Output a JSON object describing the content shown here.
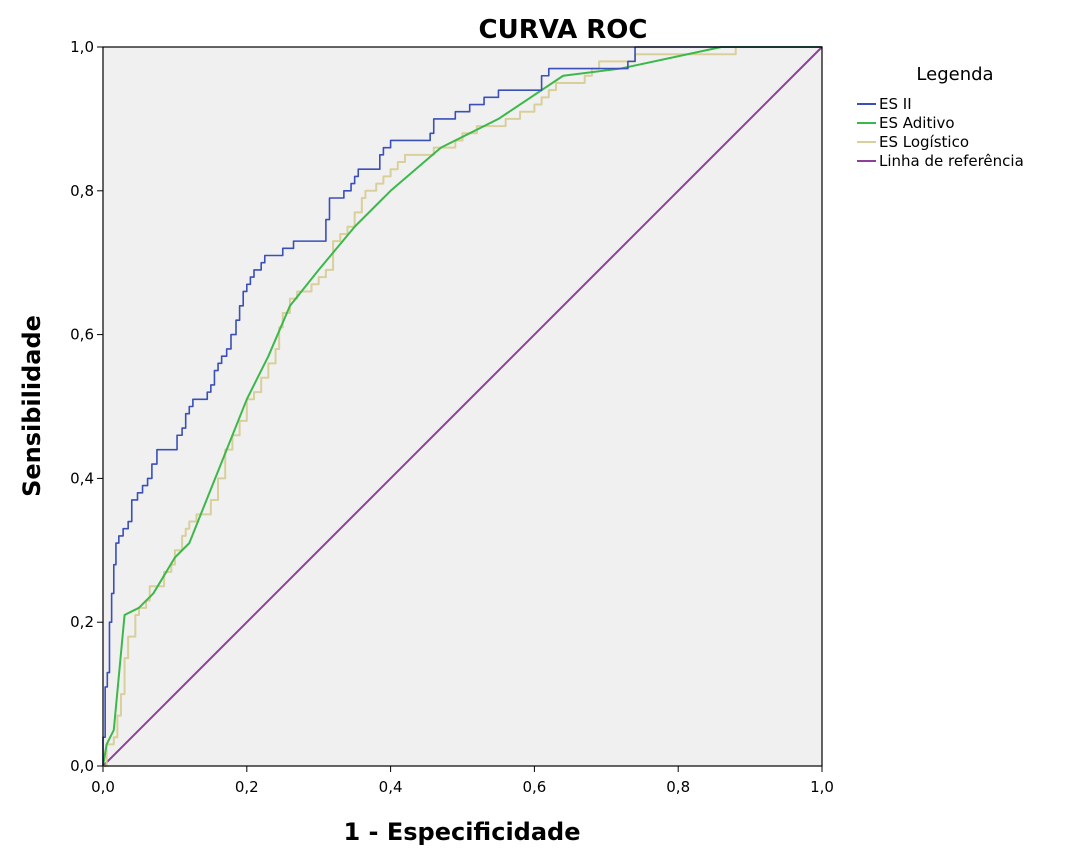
{
  "chart_data": {
    "type": "line",
    "title": "CURVA ROC",
    "xlabel": "1 - Especificidade",
    "ylabel": "Sensibilidade",
    "xlim": [
      0,
      1
    ],
    "ylim": [
      0,
      1
    ],
    "xticks": [
      "0,0",
      "0,2",
      "0,4",
      "0,6",
      "0,8",
      "1,0"
    ],
    "yticks": [
      "0,0",
      "0,2",
      "0,4",
      "0,6",
      "0,8",
      "1,0"
    ],
    "grid": false,
    "plot_background": "#f0f0f0",
    "legend": {
      "title": "Legenda",
      "position": "right",
      "entries": [
        "ES II",
        "ES Aditivo",
        "ES Logístico",
        "Linha de referência"
      ]
    },
    "series": [
      {
        "name": "ES II",
        "color": "#3a4fb7",
        "step": true,
        "points": [
          [
            0,
            0
          ],
          [
            0,
            0.04
          ],
          [
            0.003,
            0.11
          ],
          [
            0.006,
            0.13
          ],
          [
            0.009,
            0.2
          ],
          [
            0.012,
            0.24
          ],
          [
            0.015,
            0.28
          ],
          [
            0.018,
            0.31
          ],
          [
            0.022,
            0.32
          ],
          [
            0.028,
            0.33
          ],
          [
            0.035,
            0.34
          ],
          [
            0.04,
            0.37
          ],
          [
            0.048,
            0.38
          ],
          [
            0.055,
            0.39
          ],
          [
            0.062,
            0.4
          ],
          [
            0.068,
            0.42
          ],
          [
            0.075,
            0.44
          ],
          [
            0.1,
            0.44
          ],
          [
            0.103,
            0.46
          ],
          [
            0.11,
            0.47
          ],
          [
            0.115,
            0.49
          ],
          [
            0.12,
            0.5
          ],
          [
            0.125,
            0.51
          ],
          [
            0.14,
            0.51
          ],
          [
            0.145,
            0.52
          ],
          [
            0.15,
            0.53
          ],
          [
            0.155,
            0.55
          ],
          [
            0.16,
            0.56
          ],
          [
            0.165,
            0.57
          ],
          [
            0.172,
            0.58
          ],
          [
            0.178,
            0.6
          ],
          [
            0.185,
            0.62
          ],
          [
            0.19,
            0.64
          ],
          [
            0.195,
            0.66
          ],
          [
            0.2,
            0.67
          ],
          [
            0.205,
            0.68
          ],
          [
            0.21,
            0.69
          ],
          [
            0.22,
            0.7
          ],
          [
            0.225,
            0.71
          ],
          [
            0.245,
            0.71
          ],
          [
            0.25,
            0.72
          ],
          [
            0.26,
            0.72
          ],
          [
            0.265,
            0.73
          ],
          [
            0.3,
            0.73
          ],
          [
            0.31,
            0.76
          ],
          [
            0.315,
            0.79
          ],
          [
            0.33,
            0.79
          ],
          [
            0.335,
            0.8
          ],
          [
            0.345,
            0.81
          ],
          [
            0.35,
            0.82
          ],
          [
            0.355,
            0.83
          ],
          [
            0.38,
            0.83
          ],
          [
            0.385,
            0.85
          ],
          [
            0.39,
            0.86
          ],
          [
            0.4,
            0.87
          ],
          [
            0.445,
            0.87
          ],
          [
            0.455,
            0.88
          ],
          [
            0.46,
            0.9
          ],
          [
            0.48,
            0.9
          ],
          [
            0.49,
            0.91
          ],
          [
            0.51,
            0.92
          ],
          [
            0.53,
            0.93
          ],
          [
            0.55,
            0.94
          ],
          [
            0.6,
            0.94
          ],
          [
            0.61,
            0.96
          ],
          [
            0.62,
            0.97
          ],
          [
            0.72,
            0.97
          ],
          [
            0.73,
            0.98
          ],
          [
            0.74,
            1.0
          ],
          [
            1.0,
            1.0
          ]
        ]
      },
      {
        "name": "ES Aditivo",
        "color": "#3cb84a",
        "step": false,
        "points": [
          [
            0,
            0
          ],
          [
            0.005,
            0.03
          ],
          [
            0.015,
            0.05
          ],
          [
            0.03,
            0.21
          ],
          [
            0.05,
            0.22
          ],
          [
            0.07,
            0.24
          ],
          [
            0.1,
            0.29
          ],
          [
            0.12,
            0.31
          ],
          [
            0.16,
            0.41
          ],
          [
            0.2,
            0.51
          ],
          [
            0.23,
            0.57
          ],
          [
            0.26,
            0.64
          ],
          [
            0.3,
            0.69
          ],
          [
            0.35,
            0.75
          ],
          [
            0.4,
            0.8
          ],
          [
            0.47,
            0.86
          ],
          [
            0.55,
            0.9
          ],
          [
            0.64,
            0.96
          ],
          [
            0.72,
            0.97
          ],
          [
            0.86,
            1.0
          ],
          [
            1.0,
            1.0
          ]
        ]
      },
      {
        "name": "ES Logístico",
        "color": "#d9cf9a",
        "step": true,
        "points": [
          [
            0,
            0
          ],
          [
            0.005,
            0.03
          ],
          [
            0.015,
            0.04
          ],
          [
            0.02,
            0.07
          ],
          [
            0.025,
            0.1
          ],
          [
            0.03,
            0.15
          ],
          [
            0.035,
            0.18
          ],
          [
            0.045,
            0.21
          ],
          [
            0.05,
            0.22
          ],
          [
            0.06,
            0.23
          ],
          [
            0.065,
            0.25
          ],
          [
            0.08,
            0.25
          ],
          [
            0.085,
            0.27
          ],
          [
            0.095,
            0.28
          ],
          [
            0.1,
            0.3
          ],
          [
            0.11,
            0.32
          ],
          [
            0.115,
            0.33
          ],
          [
            0.12,
            0.34
          ],
          [
            0.13,
            0.35
          ],
          [
            0.14,
            0.35
          ],
          [
            0.15,
            0.37
          ],
          [
            0.16,
            0.4
          ],
          [
            0.17,
            0.44
          ],
          [
            0.18,
            0.46
          ],
          [
            0.19,
            0.48
          ],
          [
            0.2,
            0.51
          ],
          [
            0.21,
            0.52
          ],
          [
            0.22,
            0.54
          ],
          [
            0.23,
            0.56
          ],
          [
            0.24,
            0.58
          ],
          [
            0.245,
            0.61
          ],
          [
            0.25,
            0.63
          ],
          [
            0.26,
            0.65
          ],
          [
            0.27,
            0.66
          ],
          [
            0.285,
            0.66
          ],
          [
            0.29,
            0.67
          ],
          [
            0.3,
            0.68
          ],
          [
            0.31,
            0.69
          ],
          [
            0.32,
            0.73
          ],
          [
            0.33,
            0.74
          ],
          [
            0.34,
            0.75
          ],
          [
            0.35,
            0.77
          ],
          [
            0.36,
            0.79
          ],
          [
            0.365,
            0.8
          ],
          [
            0.38,
            0.81
          ],
          [
            0.39,
            0.82
          ],
          [
            0.4,
            0.83
          ],
          [
            0.41,
            0.84
          ],
          [
            0.42,
            0.85
          ],
          [
            0.45,
            0.85
          ],
          [
            0.46,
            0.86
          ],
          [
            0.48,
            0.86
          ],
          [
            0.49,
            0.87
          ],
          [
            0.5,
            0.88
          ],
          [
            0.52,
            0.89
          ],
          [
            0.54,
            0.89
          ],
          [
            0.56,
            0.9
          ],
          [
            0.58,
            0.91
          ],
          [
            0.6,
            0.92
          ],
          [
            0.61,
            0.93
          ],
          [
            0.62,
            0.94
          ],
          [
            0.63,
            0.95
          ],
          [
            0.66,
            0.95
          ],
          [
            0.67,
            0.96
          ],
          [
            0.68,
            0.97
          ],
          [
            0.69,
            0.98
          ],
          [
            0.72,
            0.98
          ],
          [
            0.74,
            0.99
          ],
          [
            0.88,
            1.0
          ],
          [
            1.0,
            1.0
          ]
        ]
      },
      {
        "name": "Linha de referência",
        "color": "#8f3f97",
        "step": false,
        "points": [
          [
            0,
            0
          ],
          [
            1,
            1
          ]
        ]
      }
    ]
  }
}
